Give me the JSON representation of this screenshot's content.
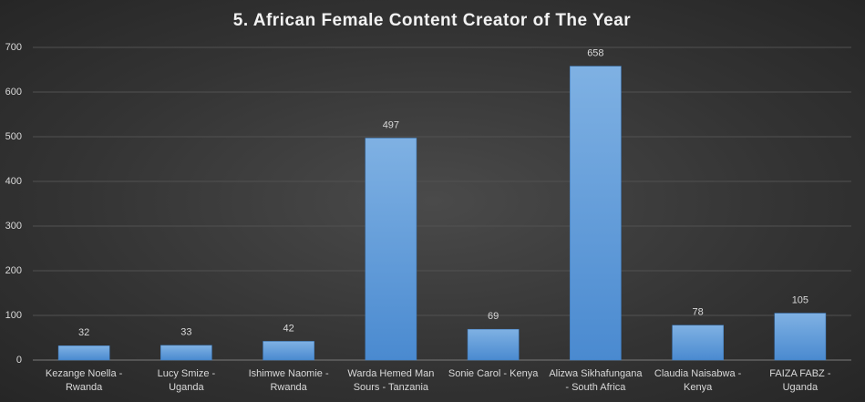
{
  "chart_data": {
    "type": "bar",
    "title": "5. African Female Content Creator of The Year",
    "categories": [
      "Kezange Noella - Rwanda",
      "Lucy Smize - Uganda",
      "Ishimwe Naomie - Rwanda",
      "Warda Hemed Man Sours - Tanzania",
      "Sonie Carol - Kenya",
      "Alizwa Sikhafungana - South Africa",
      "Claudia Naisabwa - Kenya",
      "FAIZA FABZ - Uganda"
    ],
    "values": [
      32,
      33,
      42,
      497,
      69,
      658,
      78,
      105
    ],
    "color": "#5b9bd5",
    "ylim": [
      0,
      700
    ],
    "yticks": [
      0,
      100,
      200,
      300,
      400,
      500,
      600,
      700
    ],
    "grid": true
  }
}
